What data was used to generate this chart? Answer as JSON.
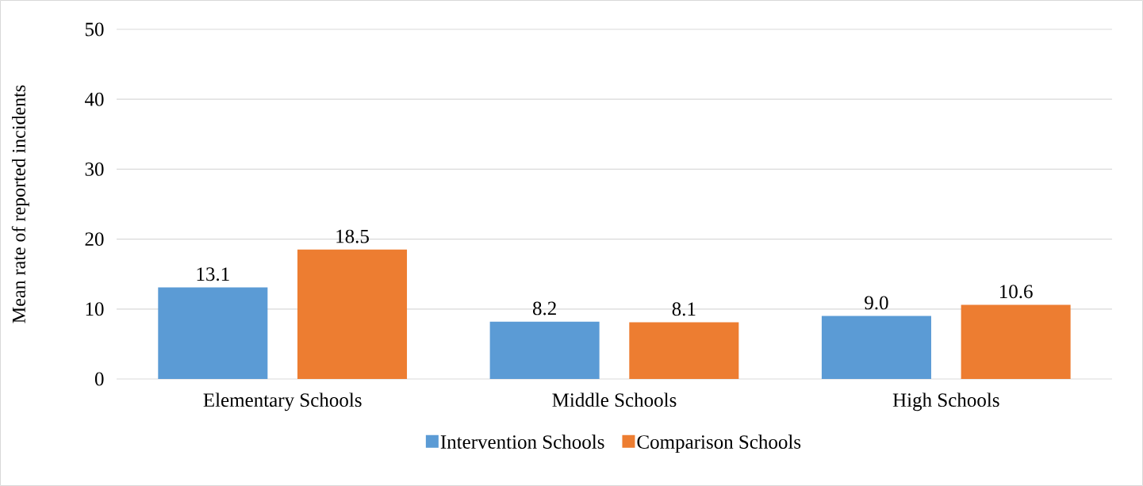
{
  "chart_data": {
    "type": "bar",
    "ylabel": "Mean rate of reported incidents",
    "categories": [
      "Elementary Schools",
      "Middle Schools",
      "High Schools"
    ],
    "series": [
      {
        "name": "Intervention Schools",
        "color": "#5b9bd5",
        "values": [
          13.1,
          8.2,
          9.0
        ],
        "value_labels": [
          "13.1",
          "8.2",
          "9.0"
        ]
      },
      {
        "name": "Comparison Schools",
        "color": "#ed7d31",
        "values": [
          18.5,
          8.1,
          10.6
        ],
        "value_labels": [
          "18.5",
          "8.1",
          "10.6"
        ]
      }
    ],
    "ylim": [
      0,
      50
    ],
    "yticks": [
      0,
      10,
      20,
      30,
      40,
      50
    ],
    "grid": "y",
    "legend": "bottom"
  }
}
